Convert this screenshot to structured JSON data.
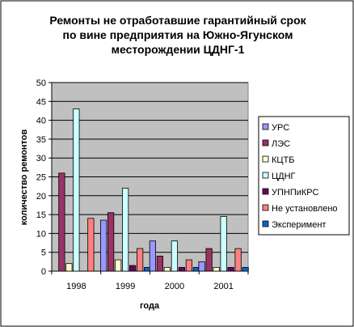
{
  "chart_data": {
    "type": "bar",
    "title_lines": [
      "Ремонты не отработавшие гарантийный срок",
      "по вине предприятия на Южно-Ягунском",
      "месторождении ЦДНГ-1"
    ],
    "xlabel": "года",
    "ylabel": "количество ремонтов",
    "categories": [
      "1998",
      "1999",
      "2000",
      "2001"
    ],
    "ylim": [
      0,
      50
    ],
    "yticks": [
      0,
      5,
      10,
      15,
      20,
      25,
      30,
      35,
      40,
      45,
      50
    ],
    "grid": true,
    "legend_position": "right",
    "series": [
      {
        "name": "УРС",
        "color": "#9999ff",
        "values": [
          0,
          13.5,
          8,
          2.5
        ]
      },
      {
        "name": "ЛЭС",
        "color": "#993366",
        "values": [
          26,
          15.5,
          4,
          6
        ]
      },
      {
        "name": "КЦТБ",
        "color": "#ffffcc",
        "values": [
          2,
          3,
          1,
          1
        ]
      },
      {
        "name": "ЦДНГ",
        "color": "#ccffff",
        "values": [
          43,
          22,
          8,
          14.5
        ]
      },
      {
        "name": "УПНПиКРС",
        "color": "#660066",
        "values": [
          0,
          1.5,
          1,
          1
        ]
      },
      {
        "name": "Не установлено",
        "color": "#ff8080",
        "values": [
          14,
          6,
          3,
          6
        ]
      },
      {
        "name": "Эксперимент",
        "color": "#0066cc",
        "values": [
          0,
          1,
          1,
          1
        ]
      }
    ],
    "plot_background": "#c0c0c0"
  }
}
